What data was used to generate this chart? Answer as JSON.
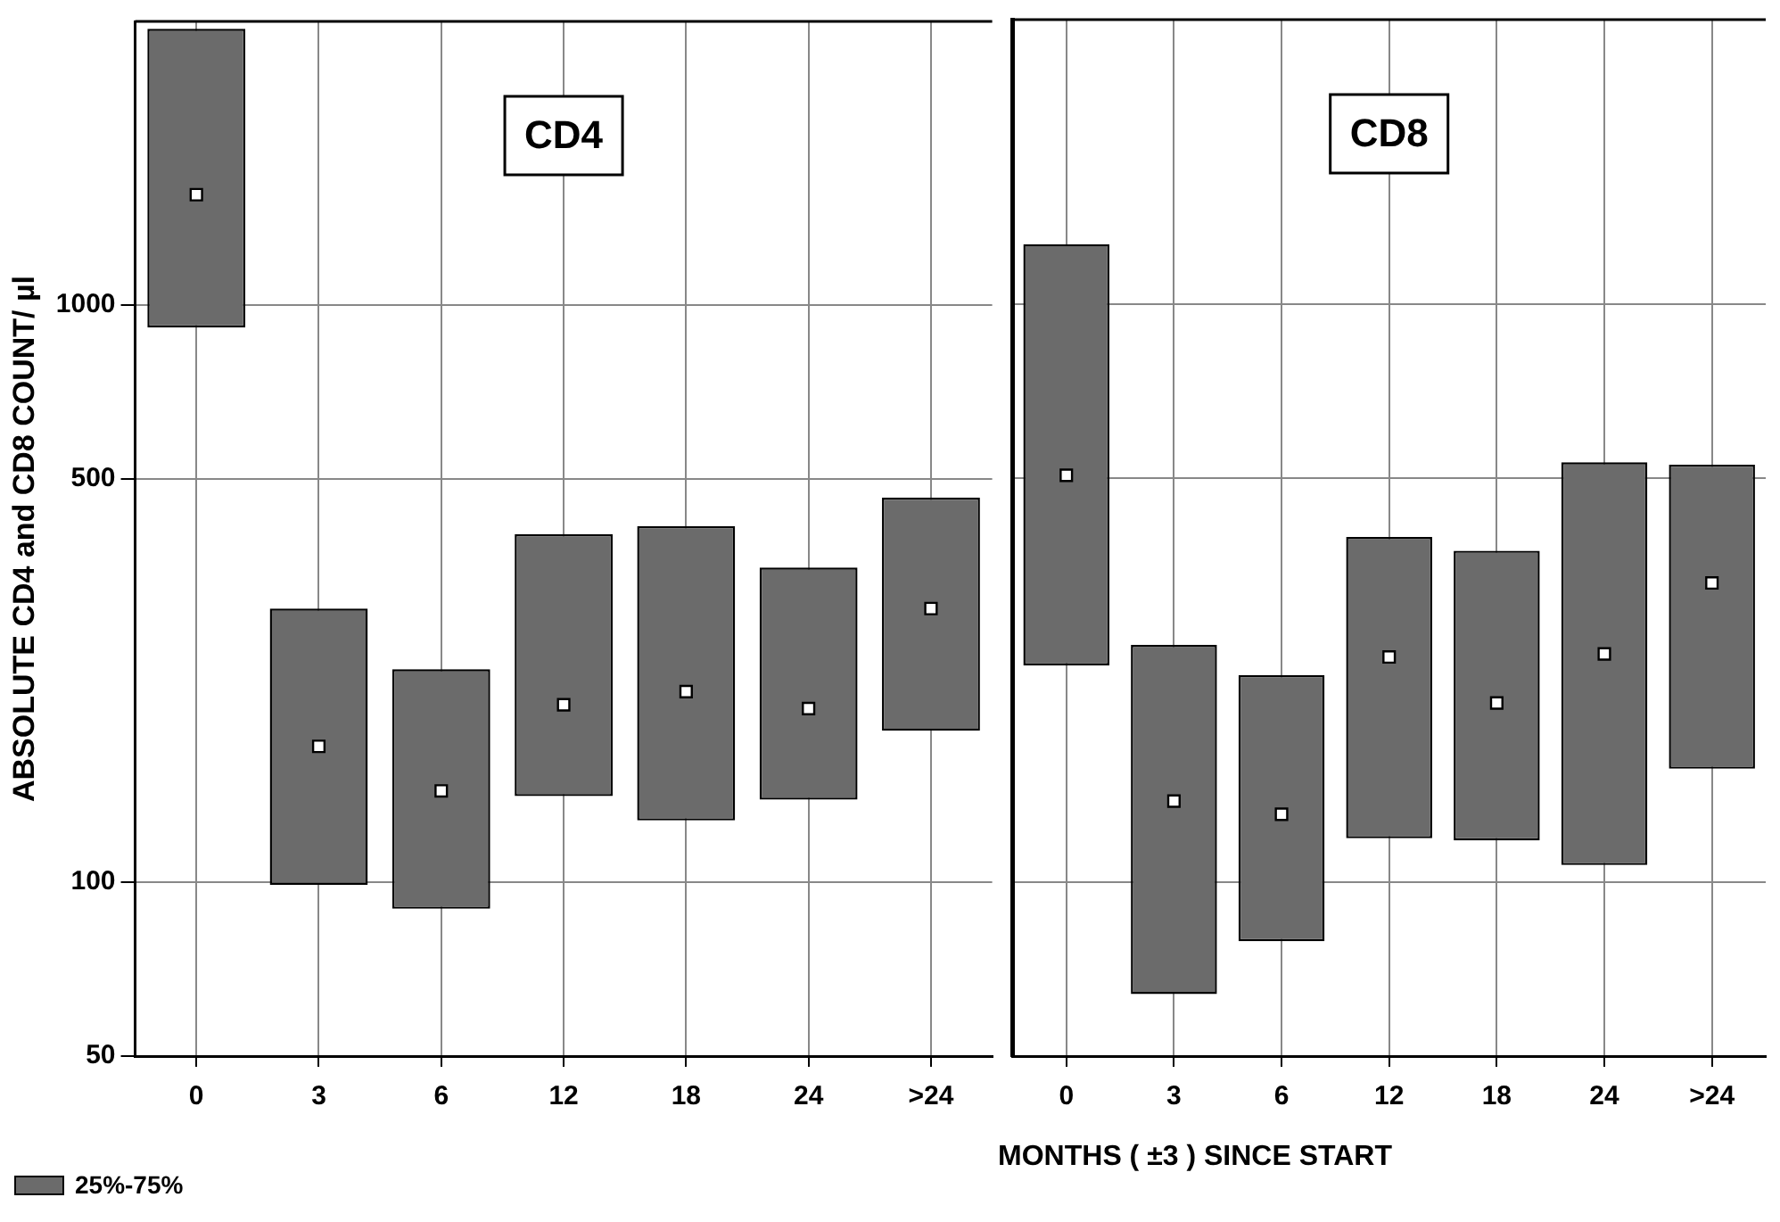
{
  "chart_data": [
    {
      "type": "bar",
      "title": "CD4",
      "ylabel": "ABSOLUTE CD4 and CD8 COUNT/ µl",
      "xlabel": "MONTHS ( ±3 ) SINCE START",
      "categories": [
        "0",
        "3",
        "6",
        "12",
        "18",
        "24",
        ">24"
      ],
      "series": [
        {
          "name": "25%-75%",
          "color": "#6b6b6b",
          "base": [
            914,
            99,
            90,
            141,
            128,
            139,
            183
          ],
          "values": [
            2096,
            199,
            144,
            260,
            286,
            212,
            281
          ]
        },
        {
          "type": "scatter",
          "color": "#ffffff",
          "x": [
            "0",
            "3",
            "6",
            "12",
            "18",
            "24",
            ">24"
          ],
          "values": [
            1553,
            172,
            144,
            203,
            214,
            200,
            298
          ]
        }
      ],
      "log": true,
      "ylim": [
        50,
        3100
      ],
      "yticks": [
        50,
        100,
        500,
        1000
      ],
      "grid": true,
      "legend": "bottom left",
      "marker": "square"
    },
    {
      "type": "bar",
      "title": "CD8",
      "categories": [
        "0",
        "3",
        "6",
        "12",
        "18",
        "24",
        ">24"
      ],
      "series": [
        {
          "color": "#6b6b6b",
          "base": [
            237,
            64,
            79,
            119,
            118,
            107,
            157
          ],
          "values": [
            1031,
            193,
            149,
            276,
            256,
            425,
            370
          ]
        },
        {
          "type": "scatter",
          "color": "#ffffff",
          "x": [
            "0",
            "3",
            "6",
            "12",
            "18",
            "24",
            ">24"
          ],
          "values": [
            505,
            138,
            131,
            245,
            204,
            248,
            329
          ]
        }
      ],
      "log": true,
      "ylim": [
        50,
        3100
      ],
      "yticks": [
        50,
        100,
        500,
        1000
      ],
      "grid": true,
      "tick_labels": "x",
      "marker": "square"
    }
  ]
}
